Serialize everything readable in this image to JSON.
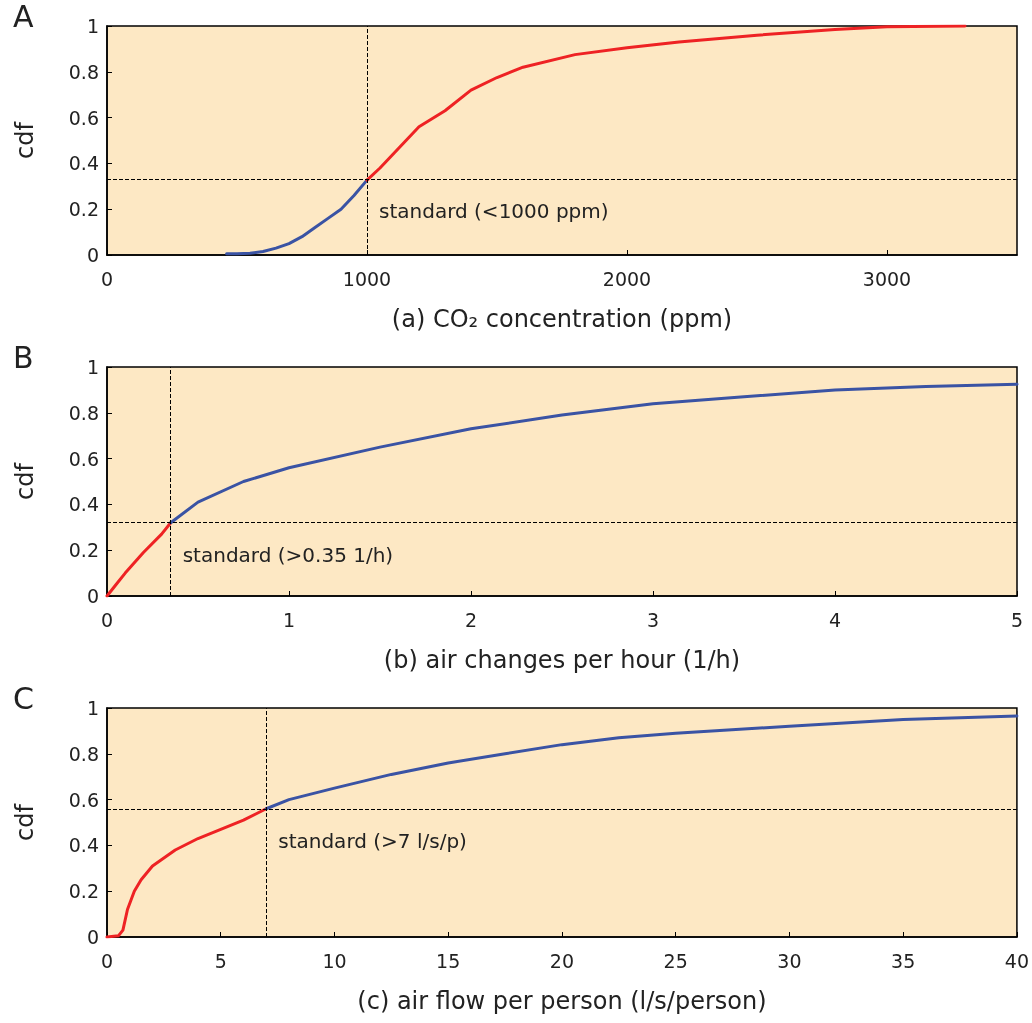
{
  "chart_data": [
    {
      "type": "line",
      "title": "A",
      "xlabel": "(a) CO₂ concentration (ppm)",
      "ylabel": "cdf",
      "xlim": [
        0,
        3500
      ],
      "xticks": [
        0,
        1000,
        2000,
        3000
      ],
      "ylim": [
        0,
        1
      ],
      "yticks": [
        0,
        0.2,
        0.4,
        0.6,
        0.8,
        1
      ],
      "grid": false,
      "marker": "none",
      "line_style": "solid",
      "series": [
        {
          "color": "#3a53a4",
          "x": [
            460,
            500,
            550,
            600,
            650,
            700,
            750,
            800,
            850,
            900,
            950,
            1000
          ],
          "values": [
            0.005,
            0.005,
            0.008,
            0.015,
            0.03,
            0.05,
            0.08,
            0.12,
            0.16,
            0.2,
            0.26,
            0.327
          ]
        },
        {
          "color": "#ee2224",
          "x": [
            1000,
            1050,
            1100,
            1150,
            1200,
            1300,
            1400,
            1500,
            1600,
            1800,
            2000,
            2200,
            2500,
            2800,
            3000,
            3300
          ],
          "values": [
            0.327,
            0.38,
            0.44,
            0.5,
            0.56,
            0.63,
            0.72,
            0.775,
            0.82,
            0.875,
            0.905,
            0.93,
            0.96,
            0.985,
            0.997,
            1.0
          ]
        }
      ],
      "ref_lines": [
        {
          "axis": "x",
          "value": 1000,
          "label": "standard (<1000 ppm)"
        },
        {
          "axis": "y",
          "value": 0.33
        }
      ]
    },
    {
      "type": "line",
      "title": "B",
      "xlabel": "(b) air changes per hour (1/h)",
      "ylabel": "cdf",
      "xlim": [
        0,
        5
      ],
      "xticks": [
        0,
        1,
        2,
        3,
        4,
        5
      ],
      "ylim": [
        0,
        1
      ],
      "yticks": [
        0,
        0.2,
        0.4,
        0.6,
        0.8,
        1
      ],
      "grid": false,
      "marker": "none",
      "line_style": "solid",
      "series": [
        {
          "color": "#ee2224",
          "x": [
            0,
            0.05,
            0.1,
            0.2,
            0.3,
            0.35
          ],
          "values": [
            0,
            0.05,
            0.1,
            0.19,
            0.27,
            0.32
          ]
        },
        {
          "color": "#3a53a4",
          "x": [
            0.35,
            0.5,
            0.75,
            1,
            1.5,
            2,
            2.5,
            3,
            3.5,
            4,
            4.5,
            5
          ],
          "values": [
            0.32,
            0.41,
            0.5,
            0.56,
            0.65,
            0.73,
            0.79,
            0.84,
            0.87,
            0.9,
            0.915,
            0.925
          ]
        }
      ],
      "ref_lines": [
        {
          "axis": "x",
          "value": 0.35,
          "label": "standard (>0.35 1/h)"
        },
        {
          "axis": "y",
          "value": 0.32
        }
      ]
    },
    {
      "type": "line",
      "title": "C",
      "xlabel": "(c) air flow per person (l/s/person)",
      "ylabel": "cdf",
      "xlim": [
        0,
        40
      ],
      "xticks": [
        0,
        5,
        10,
        15,
        20,
        25,
        30,
        35,
        40
      ],
      "ylim": [
        0,
        1
      ],
      "yticks": [
        0,
        0.2,
        0.4,
        0.6,
        0.8,
        1
      ],
      "grid": false,
      "marker": "none",
      "line_style": "solid",
      "series": [
        {
          "color": "#ee2224",
          "x": [
            0,
            0.5,
            0.7,
            0.9,
            1.2,
            1.5,
            2,
            3,
            4,
            5,
            6,
            7
          ],
          "values": [
            0,
            0.005,
            0.03,
            0.12,
            0.2,
            0.25,
            0.31,
            0.38,
            0.43,
            0.47,
            0.51,
            0.56
          ]
        },
        {
          "color": "#3a53a4",
          "x": [
            7,
            8,
            10,
            12.5,
            15,
            17.5,
            20,
            22.5,
            25,
            30,
            35,
            40
          ],
          "values": [
            0.56,
            0.6,
            0.65,
            0.71,
            0.76,
            0.8,
            0.84,
            0.87,
            0.89,
            0.92,
            0.95,
            0.965
          ]
        }
      ],
      "ref_lines": [
        {
          "axis": "x",
          "value": 7,
          "label": "standard (>7 l/s/p)"
        },
        {
          "axis": "y",
          "value": 0.56
        }
      ]
    }
  ]
}
